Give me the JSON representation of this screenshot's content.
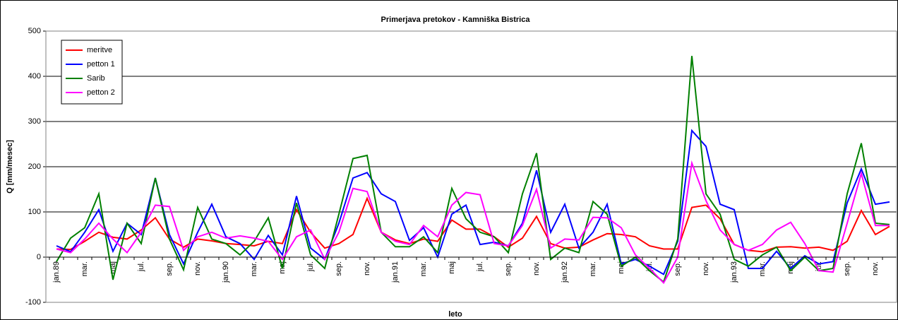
{
  "chart_data": {
    "type": "line",
    "title": "Primerjava pretokov - Kamniška Bistrica",
    "x_label": "leto",
    "y_label": "Q [mm/mesec]",
    "categories": [
      "jan.89",
      null,
      "mar.",
      null,
      "maj",
      null,
      "jul.",
      null,
      "sep.",
      null,
      "nov.",
      null,
      "jan.90",
      null,
      "mar.",
      null,
      "maj",
      null,
      "jul.",
      null,
      "sep.",
      null,
      "nov.",
      null,
      "jan.91",
      null,
      "mar.",
      null,
      "maj",
      null,
      "jul.",
      null,
      "sep.",
      null,
      "nov.",
      null,
      "jan.92",
      null,
      "mar.",
      null,
      "maj",
      null,
      "jul.",
      null,
      "sep.",
      null,
      "nov.",
      null,
      "jan.93",
      null,
      "mar.",
      null,
      "maj",
      null,
      "jul.",
      null,
      "sep.",
      null,
      "nov.",
      null
    ],
    "series": [
      {
        "name": "meritve",
        "color": "#ff0000",
        "values": [
          18,
          17,
          35,
          55,
          44,
          40,
          60,
          87,
          40,
          22,
          40,
          36,
          30,
          28,
          25,
          35,
          30,
          105,
          55,
          20,
          30,
          50,
          130,
          55,
          38,
          30,
          40,
          35,
          82,
          62,
          62,
          45,
          22,
          42,
          90,
          30,
          20,
          22,
          38,
          52,
          50,
          45,
          25,
          18,
          18,
          110,
          115,
          85,
          28,
          15,
          12,
          22,
          23,
          20,
          22,
          15,
          35,
          103,
          50,
          68
        ]
      },
      {
        "name": "petton 1",
        "color": "#0000ff",
        "values": [
          25,
          12,
          55,
          105,
          13,
          75,
          50,
          175,
          50,
          -15,
          55,
          117,
          45,
          30,
          -5,
          48,
          5,
          135,
          20,
          -5,
          75,
          175,
          187,
          140,
          123,
          37,
          65,
          0,
          95,
          115,
          28,
          33,
          25,
          75,
          192,
          55,
          117,
          20,
          55,
          117,
          -15,
          -5,
          -20,
          -38,
          35,
          280,
          245,
          117,
          105,
          -25,
          -25,
          13,
          -25,
          3,
          -15,
          -10,
          120,
          195,
          117,
          122
        ]
      },
      {
        "name": "Sarib",
        "color": "#008000",
        "values": [
          -10,
          42,
          65,
          140,
          -50,
          75,
          30,
          175,
          40,
          -28,
          110,
          40,
          30,
          5,
          35,
          87,
          -25,
          120,
          5,
          -25,
          95,
          218,
          225,
          55,
          23,
          23,
          45,
          10,
          152,
          85,
          55,
          45,
          10,
          140,
          230,
          -5,
          20,
          10,
          123,
          95,
          -20,
          0,
          -30,
          -55,
          40,
          445,
          140,
          95,
          -5,
          -20,
          5,
          22,
          -30,
          0,
          -30,
          -25,
          140,
          252,
          75,
          72
        ]
      },
      {
        "name": "petton 2",
        "color": "#ff00ff",
        "values": [
          18,
          10,
          40,
          75,
          40,
          10,
          55,
          115,
          112,
          15,
          45,
          55,
          42,
          47,
          42,
          35,
          -5,
          45,
          60,
          -5,
          55,
          152,
          145,
          55,
          35,
          28,
          70,
          45,
          115,
          143,
          138,
          30,
          25,
          70,
          150,
          20,
          40,
          38,
          88,
          87,
          65,
          5,
          -25,
          -57,
          0,
          208,
          125,
          60,
          28,
          15,
          28,
          60,
          77,
          30,
          -30,
          -33,
          75,
          185,
          70,
          70
        ]
      }
    ],
    "ylim": [
      -100,
      500
    ],
    "yticks": [
      -100,
      0,
      100,
      200,
      300,
      400,
      500
    ],
    "grid": true,
    "legend": "top-left"
  }
}
